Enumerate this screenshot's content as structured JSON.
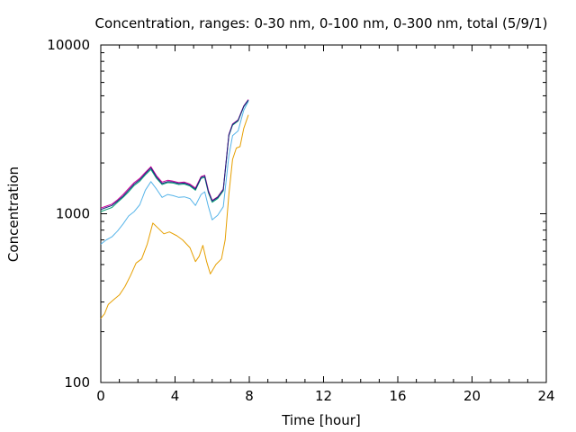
{
  "chart_data": {
    "type": "line",
    "title": "Concentration, ranges: 0-30 nm, 0-100 nm, 0-300 nm, total (5/9/1)",
    "xlabel": "Time [hour]",
    "ylabel": "Concentration",
    "xlim": [
      0,
      24
    ],
    "ylim": [
      100,
      10000
    ],
    "yscale": "log",
    "x_ticks": [
      "0",
      "4",
      "8",
      "12",
      "16",
      "20",
      "24"
    ],
    "y_ticks": [
      "100",
      "1000",
      "10000"
    ],
    "grid": false,
    "legend": "none",
    "series": [
      {
        "color": "#e69f00",
        "points": [
          [
            0,
            240
          ],
          [
            0.2,
            255
          ],
          [
            0.4,
            290
          ],
          [
            0.7,
            310
          ],
          [
            1.0,
            330
          ],
          [
            1.3,
            370
          ],
          [
            1.6,
            430
          ],
          [
            1.9,
            510
          ],
          [
            2.2,
            540
          ],
          [
            2.5,
            660
          ],
          [
            2.8,
            880
          ],
          [
            3.1,
            820
          ],
          [
            3.4,
            760
          ],
          [
            3.7,
            780
          ],
          [
            4.1,
            740
          ],
          [
            4.4,
            700
          ],
          [
            4.8,
            630
          ],
          [
            5.1,
            520
          ],
          [
            5.3,
            560
          ],
          [
            5.5,
            650
          ],
          [
            5.7,
            520
          ],
          [
            5.9,
            440
          ],
          [
            6.2,
            500
          ],
          [
            6.5,
            540
          ],
          [
            6.7,
            700
          ],
          [
            6.9,
            1300
          ],
          [
            7.1,
            2100
          ],
          [
            7.3,
            2450
          ],
          [
            7.5,
            2500
          ],
          [
            7.7,
            3200
          ],
          [
            7.95,
            3850
          ]
        ]
      },
      {
        "color": "#56b4e9",
        "points": [
          [
            0,
            660
          ],
          [
            0.3,
            700
          ],
          [
            0.6,
            730
          ],
          [
            0.9,
            790
          ],
          [
            1.2,
            870
          ],
          [
            1.5,
            970
          ],
          [
            1.8,
            1030
          ],
          [
            2.1,
            1130
          ],
          [
            2.4,
            1380
          ],
          [
            2.7,
            1550
          ],
          [
            3.0,
            1400
          ],
          [
            3.3,
            1250
          ],
          [
            3.6,
            1300
          ],
          [
            3.9,
            1280
          ],
          [
            4.2,
            1250
          ],
          [
            4.5,
            1260
          ],
          [
            4.8,
            1230
          ],
          [
            5.1,
            1120
          ],
          [
            5.4,
            1300
          ],
          [
            5.6,
            1350
          ],
          [
            5.8,
            1100
          ],
          [
            6.0,
            920
          ],
          [
            6.3,
            980
          ],
          [
            6.6,
            1100
          ],
          [
            6.9,
            2200
          ],
          [
            7.1,
            2900
          ],
          [
            7.4,
            3100
          ],
          [
            7.7,
            4100
          ],
          [
            7.95,
            4650
          ]
        ]
      },
      {
        "color": "#009e73",
        "points": [
          [
            0,
            1030
          ],
          [
            0.3,
            1060
          ],
          [
            0.6,
            1090
          ],
          [
            0.9,
            1170
          ],
          [
            1.2,
            1250
          ],
          [
            1.5,
            1350
          ],
          [
            1.8,
            1470
          ],
          [
            2.1,
            1560
          ],
          [
            2.4,
            1700
          ],
          [
            2.7,
            1830
          ],
          [
            3.0,
            1620
          ],
          [
            3.3,
            1490
          ],
          [
            3.6,
            1530
          ],
          [
            3.9,
            1520
          ],
          [
            4.2,
            1490
          ],
          [
            4.5,
            1500
          ],
          [
            4.8,
            1460
          ],
          [
            5.1,
            1380
          ],
          [
            5.4,
            1620
          ],
          [
            5.6,
            1640
          ],
          [
            5.8,
            1330
          ],
          [
            6.0,
            1170
          ],
          [
            6.3,
            1230
          ],
          [
            6.6,
            1370
          ],
          [
            6.9,
            2900
          ],
          [
            7.1,
            3350
          ],
          [
            7.4,
            3550
          ],
          [
            7.7,
            4300
          ],
          [
            7.95,
            4700
          ]
        ]
      },
      {
        "color": "#cc0099",
        "points": [
          [
            0,
            1080
          ],
          [
            0.3,
            1110
          ],
          [
            0.6,
            1140
          ],
          [
            0.9,
            1210
          ],
          [
            1.2,
            1300
          ],
          [
            1.5,
            1410
          ],
          [
            1.8,
            1530
          ],
          [
            2.1,
            1620
          ],
          [
            2.4,
            1760
          ],
          [
            2.7,
            1900
          ],
          [
            3.0,
            1680
          ],
          [
            3.3,
            1540
          ],
          [
            3.6,
            1580
          ],
          [
            3.9,
            1560
          ],
          [
            4.2,
            1530
          ],
          [
            4.5,
            1540
          ],
          [
            4.8,
            1500
          ],
          [
            5.1,
            1420
          ],
          [
            5.4,
            1660
          ],
          [
            5.6,
            1690
          ],
          [
            5.8,
            1370
          ],
          [
            6.0,
            1200
          ],
          [
            6.3,
            1260
          ],
          [
            6.6,
            1400
          ],
          [
            6.9,
            2950
          ],
          [
            7.1,
            3400
          ],
          [
            7.4,
            3600
          ],
          [
            7.7,
            4350
          ],
          [
            7.95,
            4750
          ]
        ]
      },
      {
        "color": "#1a237e",
        "points": [
          [
            0,
            1060
          ],
          [
            0.3,
            1090
          ],
          [
            0.6,
            1120
          ],
          [
            0.9,
            1190
          ],
          [
            1.2,
            1270
          ],
          [
            1.5,
            1380
          ],
          [
            1.8,
            1500
          ],
          [
            2.1,
            1590
          ],
          [
            2.4,
            1730
          ],
          [
            2.7,
            1870
          ],
          [
            3.0,
            1650
          ],
          [
            3.3,
            1510
          ],
          [
            3.6,
            1550
          ],
          [
            3.9,
            1540
          ],
          [
            4.2,
            1510
          ],
          [
            4.5,
            1520
          ],
          [
            4.8,
            1480
          ],
          [
            5.1,
            1400
          ],
          [
            5.4,
            1640
          ],
          [
            5.6,
            1670
          ],
          [
            5.8,
            1350
          ],
          [
            6.0,
            1190
          ],
          [
            6.3,
            1250
          ],
          [
            6.6,
            1390
          ],
          [
            6.9,
            2930
          ],
          [
            7.1,
            3380
          ],
          [
            7.4,
            3580
          ],
          [
            7.7,
            4330
          ],
          [
            7.95,
            4730
          ]
        ]
      }
    ]
  }
}
